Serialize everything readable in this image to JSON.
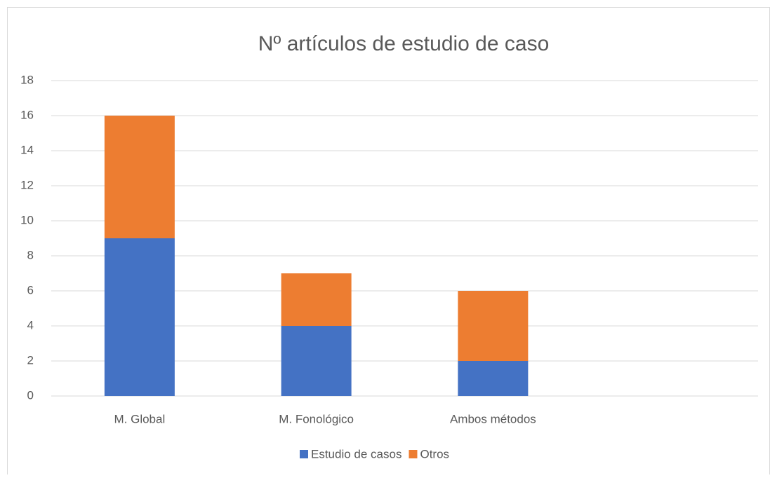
{
  "chart_data": {
    "type": "bar",
    "stacked": true,
    "title": "Nº artículos de estudio de caso",
    "categories": [
      "M. Global",
      "M. Fonológico",
      "Ambos métodos",
      null
    ],
    "series": [
      {
        "name": "Estudio de casos",
        "color": "#4472c4",
        "values": [
          9,
          4,
          2,
          null
        ]
      },
      {
        "name": "Otros",
        "color": "#ed7d31",
        "values": [
          7,
          3,
          4,
          null
        ]
      }
    ],
    "ylim": [
      0,
      18
    ],
    "yticks": [
      0,
      2,
      4,
      6,
      8,
      10,
      12,
      14,
      16,
      18
    ],
    "grid": true,
    "legend": "bottom"
  }
}
